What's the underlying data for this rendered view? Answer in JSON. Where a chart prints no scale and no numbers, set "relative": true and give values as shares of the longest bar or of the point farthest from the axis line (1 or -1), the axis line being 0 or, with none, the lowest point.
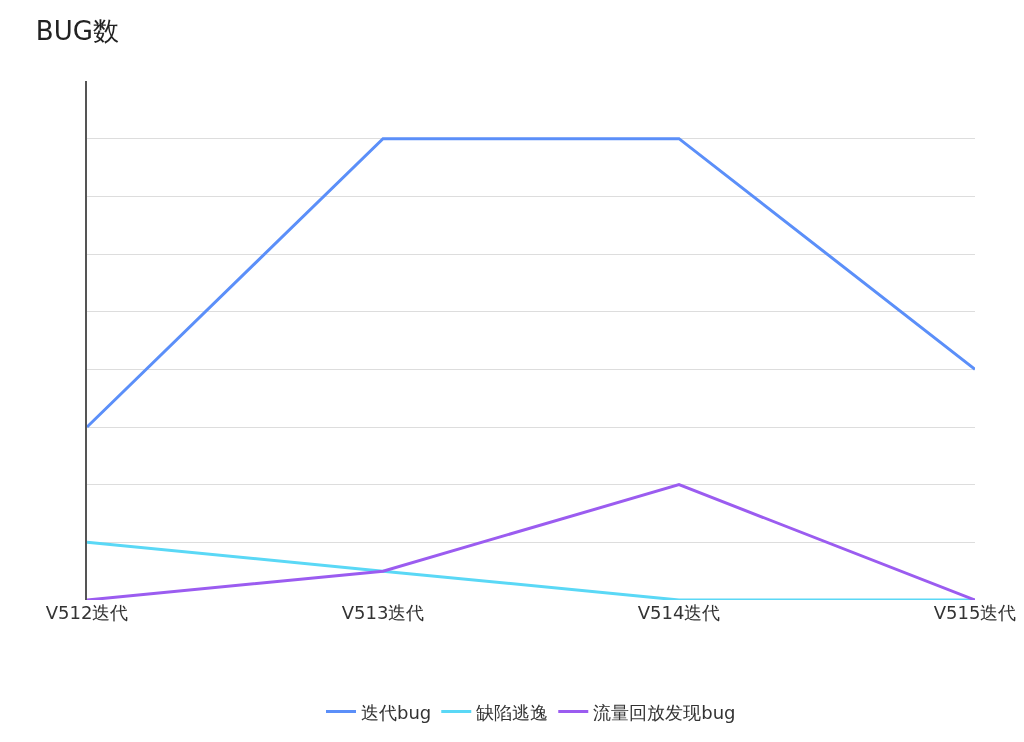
{
  "chart_data": {
    "type": "line",
    "title": "BUG数",
    "relative": true,
    "grid": "y",
    "legend": "bottom",
    "marker": "none",
    "line_style": "solid",
    "categories": [
      "V512迭代",
      "V513迭代",
      "V514迭代",
      "V515迭代"
    ],
    "series": [
      {
        "name": "迭代bug",
        "color": "#5b8ff9",
        "values": [
          0.375,
          1,
          1,
          0.5
        ]
      },
      {
        "name": "缺陷逃逸",
        "color": "#5ad8f6",
        "values": [
          0.125,
          0.0625,
          0,
          0
        ]
      },
      {
        "name": "流量回放发现bug",
        "color": "#9b5cf0",
        "values": [
          0,
          0.0625,
          0.25,
          0
        ]
      }
    ]
  }
}
